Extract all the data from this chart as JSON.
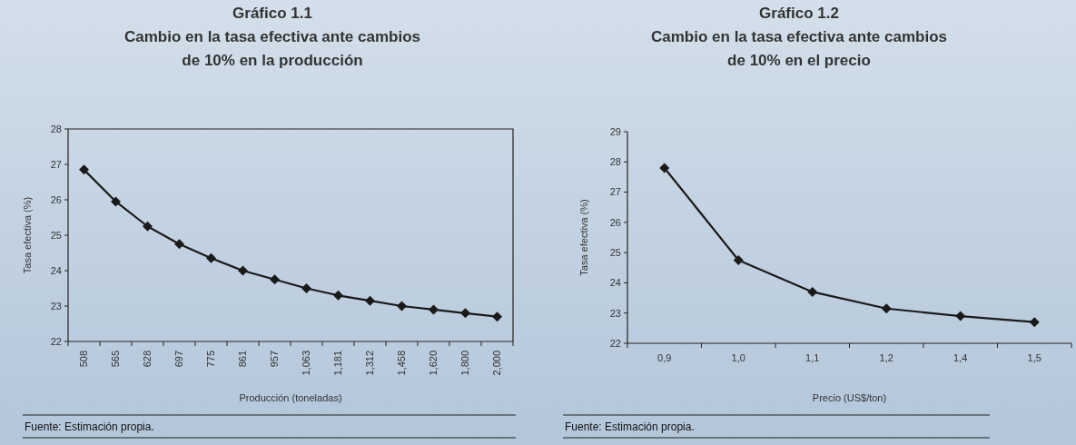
{
  "chart_data": [
    {
      "type": "line",
      "title": "Gráfico 1.1\nCambio en la tasa efectiva ante cambios\nde 10% en la producción",
      "xlabel": "Producción (toneladas)",
      "ylabel": "Tasa efectiva (%)",
      "categories": [
        "508",
        "565",
        "628",
        "697",
        "775",
        "861",
        "957",
        "1,063",
        "1,181",
        "1,312",
        "1,458",
        "1,620",
        "1,800",
        "2,000"
      ],
      "values": [
        26.85,
        25.95,
        25.25,
        24.75,
        24.35,
        24.0,
        23.75,
        23.5,
        23.3,
        23.15,
        23.0,
        22.9,
        22.8,
        22.7
      ],
      "color": "#1a1a1a",
      "ylim": [
        22,
        28
      ],
      "yticks": [
        22,
        23,
        24,
        25,
        26,
        27,
        28
      ],
      "marker": "diamond",
      "line_style": "solid",
      "grid": false,
      "annotations": [
        "Fuente: Estimación propia."
      ]
    },
    {
      "type": "line",
      "title": "Gráfico 1.2\nCambio en la tasa efectiva ante cambios\nde 10% en el precio",
      "xlabel": "Precio (US$/ton)",
      "ylabel": "Tasa efectiva (%)",
      "categories": [
        "0,9",
        "1,0",
        "1,1",
        "1,2",
        "1,4",
        "1,5"
      ],
      "values": [
        27.8,
        24.75,
        23.7,
        23.15,
        22.9,
        22.7
      ],
      "color": "#1a1a1a",
      "ylim": [
        22,
        29
      ],
      "yticks": [
        22,
        23,
        24,
        25,
        26,
        27,
        28,
        29
      ],
      "marker": "diamond",
      "line_style": "solid",
      "grid": false,
      "annotations": [
        "Fuente: Estimación propia."
      ]
    }
  ]
}
